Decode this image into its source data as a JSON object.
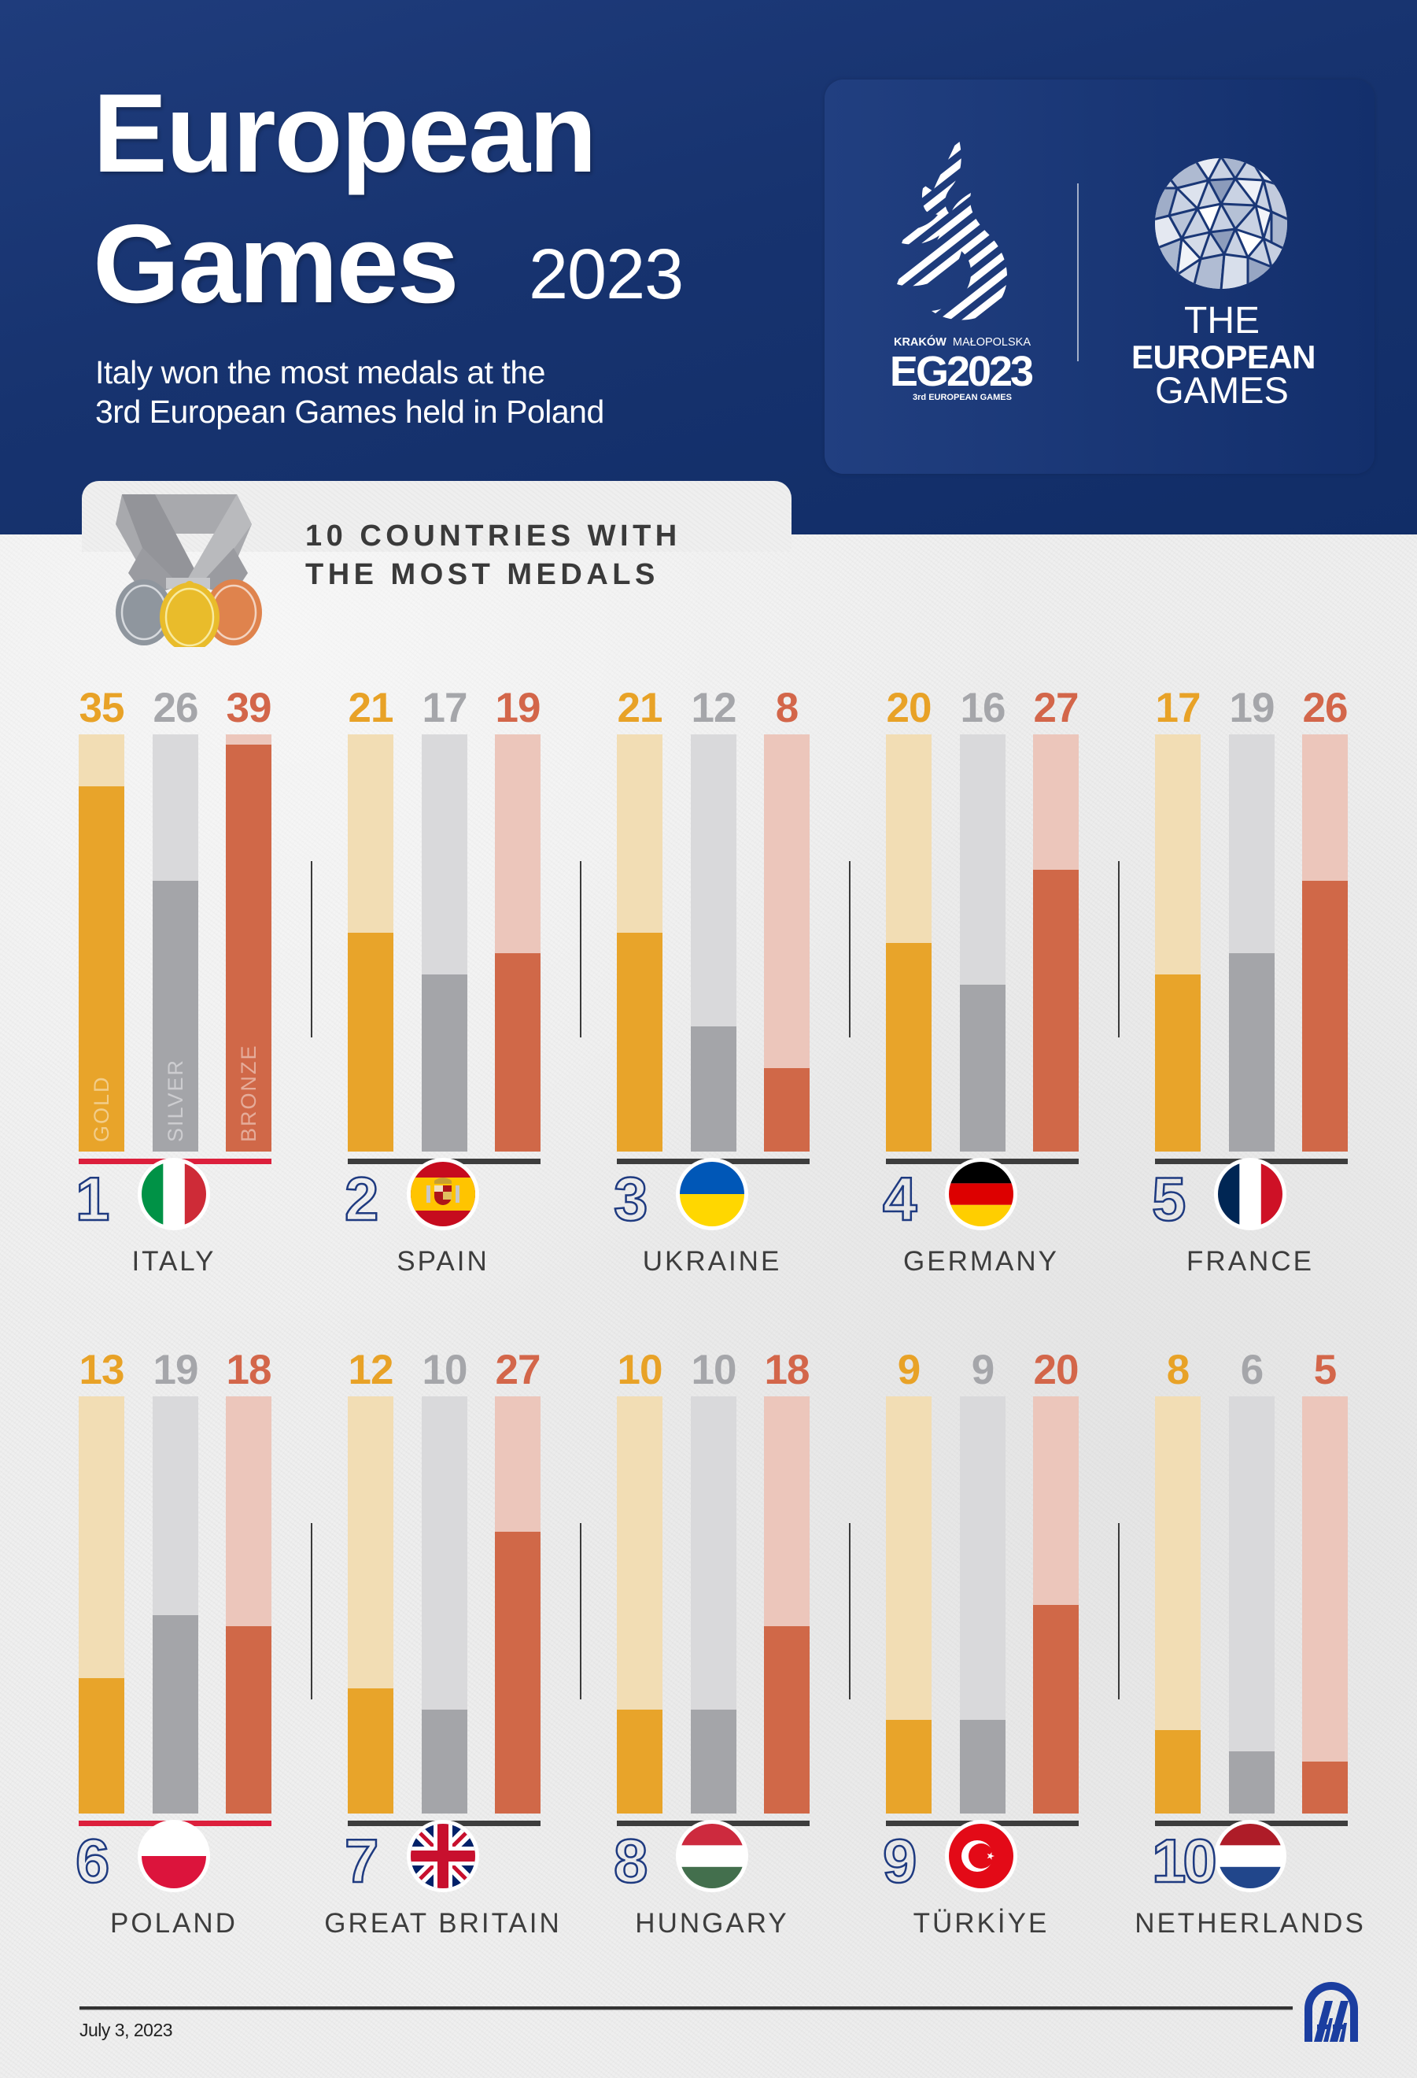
{
  "header": {
    "title_line1": "European",
    "title_line2": "Games",
    "title_year": "2023",
    "subtitle": "Italy won the most medals at the\n3rd European Games held in Poland"
  },
  "logos": {
    "eg2023": {
      "city": "KRAKÓW",
      "region": "MAŁOPOLSKA",
      "mark": "EG2023",
      "edition": "3rd EUROPEAN GAMES"
    },
    "european_games": {
      "line1": "THE",
      "line2": "EUROPEAN",
      "line3": "GAMES"
    }
  },
  "section": {
    "title": "10 COUNTRIES WITH\nTHE MOST MEDALS",
    "icon": "medals-icon"
  },
  "legend_labels": {
    "gold": "GOLD",
    "silver": "SILVER",
    "bronze": "BRONZE"
  },
  "colors": {
    "gold": "#e8a42a",
    "gold_track": "#f2ddb4",
    "silver": "#a4a5a9",
    "silver_track": "#d9d9db",
    "bronze": "#d06848",
    "bronze_track": "#ecc6bb",
    "gold_text": "#e8a227",
    "silver_text": "#a5a6aa",
    "bronze_text": "#d3664a",
    "baseline_host": "#dc1f3c",
    "baseline_default": "#3d3d3d",
    "navy": "#1e3a80"
  },
  "countries": [
    {
      "rank": "1",
      "name": "ITALY",
      "flag": "italy-flag",
      "gold": 35,
      "silver": 26,
      "bronze": 39,
      "highlight": true
    },
    {
      "rank": "2",
      "name": "SPAIN",
      "flag": "spain-flag",
      "gold": 21,
      "silver": 17,
      "bronze": 19,
      "highlight": false
    },
    {
      "rank": "3",
      "name": "UKRAINE",
      "flag": "ukraine-flag",
      "gold": 21,
      "silver": 12,
      "bronze": 8,
      "highlight": false
    },
    {
      "rank": "4",
      "name": "GERMANY",
      "flag": "germany-flag",
      "gold": 20,
      "silver": 16,
      "bronze": 27,
      "highlight": false
    },
    {
      "rank": "5",
      "name": "FRANCE",
      "flag": "france-flag",
      "gold": 17,
      "silver": 19,
      "bronze": 26,
      "highlight": false
    },
    {
      "rank": "6",
      "name": "POLAND",
      "flag": "poland-flag",
      "gold": 13,
      "silver": 19,
      "bronze": 18,
      "highlight": true
    },
    {
      "rank": "7",
      "name": "GREAT BRITAIN",
      "flag": "great-britain-flag",
      "gold": 12,
      "silver": 10,
      "bronze": 27,
      "highlight": false
    },
    {
      "rank": "8",
      "name": "HUNGARY",
      "flag": "hungary-flag",
      "gold": 10,
      "silver": 10,
      "bronze": 18,
      "highlight": false
    },
    {
      "rank": "9",
      "name": "TÜRKİYE",
      "flag": "turkiye-flag",
      "gold": 9,
      "silver": 9,
      "bronze": 20,
      "highlight": false
    },
    {
      "rank": "10",
      "name": "NETHERLANDS",
      "flag": "netherlands-flag",
      "gold": 8,
      "silver": 6,
      "bronze": 5,
      "highlight": false
    }
  ],
  "chart_data": {
    "type": "bar",
    "title": "10 COUNTRIES WITH THE MOST MEDALS",
    "subtitle": "Italy won the most medals at the 3rd European Games held in Poland",
    "categories": [
      "ITALY",
      "SPAIN",
      "UKRAINE",
      "GERMANY",
      "FRANCE",
      "POLAND",
      "GREAT BRITAIN",
      "HUNGARY",
      "TÜRKİYE",
      "NETHERLANDS"
    ],
    "series": [
      {
        "name": "GOLD",
        "values": [
          35,
          21,
          21,
          20,
          17,
          13,
          12,
          10,
          9,
          8
        ]
      },
      {
        "name": "SILVER",
        "values": [
          26,
          17,
          12,
          16,
          19,
          19,
          10,
          10,
          9,
          6
        ]
      },
      {
        "name": "BRONZE",
        "values": [
          39,
          19,
          8,
          27,
          26,
          18,
          27,
          18,
          20,
          5
        ]
      }
    ],
    "xlabel": "",
    "ylabel": "",
    "ylim": [
      0,
      40
    ],
    "grid": false,
    "legend": "inside-first-group"
  },
  "footer": {
    "date": "July 3, 2023",
    "agency_logo": "anadolu-agency-logo"
  }
}
